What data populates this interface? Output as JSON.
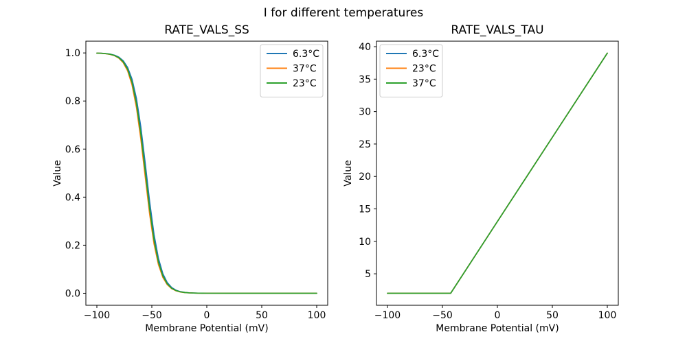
{
  "suptitle": "I for different temperatures",
  "colors": {
    "blue": "#1f77b4",
    "orange": "#ff7f0e",
    "green": "#2ca02c",
    "legend_edge": "#cccccc",
    "spine": "#000000"
  },
  "chart_data": [
    {
      "type": "line",
      "title": "RATE_VALS_SS",
      "xlabel": "Membrane Potential (mV)",
      "ylabel": "Value",
      "xlim": [
        -110,
        110
      ],
      "ylim": [
        -0.05,
        1.049
      ],
      "xticks": [
        -100,
        -50,
        0,
        50,
        100
      ],
      "xticklabels": [
        "−100",
        "−50",
        "0",
        "50",
        "100"
      ],
      "yticks": [
        0.0,
        0.2,
        0.4,
        0.6,
        0.8,
        1.0
      ],
      "yticklabels": [
        "0.0",
        "0.2",
        "0.4",
        "0.6",
        "0.8",
        "1.0"
      ],
      "grid": false,
      "legend_loc": "upper-right",
      "series": [
        {
          "name": "6.3°C",
          "color": "#1f77b4",
          "points": [
            [
              -100,
              0.9993
            ],
            [
              -96,
              0.9987
            ],
            [
              -92,
              0.9974
            ],
            [
              -88,
              0.9952
            ],
            [
              -84,
              0.9908
            ],
            [
              -80,
              0.9826
            ],
            [
              -76,
              0.9673
            ],
            [
              -72,
              0.9394
            ],
            [
              -68,
              0.8906
            ],
            [
              -64,
              0.8103
            ],
            [
              -60,
              0.6913
            ],
            [
              -56,
              0.5402
            ],
            [
              -52,
              0.3813
            ],
            [
              -48,
              0.2443
            ],
            [
              -44,
              0.1451
            ],
            [
              -40,
              0.0817
            ],
            [
              -36,
              0.0446
            ],
            [
              -32,
              0.0239
            ],
            [
              -28,
              0.0127
            ],
            [
              -24,
              0.0067
            ],
            [
              -20,
              0.0035
            ],
            [
              -16,
              0.0019
            ],
            [
              -12,
              0.001
            ],
            [
              -8,
              0.0005
            ],
            [
              -4,
              0.0003
            ],
            [
              0,
              0.0001
            ],
            [
              20,
              0
            ],
            [
              40,
              0
            ],
            [
              60,
              0
            ],
            [
              80,
              0
            ],
            [
              100,
              0
            ]
          ]
        },
        {
          "name": "37°C",
          "color": "#ff7f0e",
          "points": [
            [
              -100,
              0.9991
            ],
            [
              -96,
              0.9983
            ],
            [
              -92,
              0.9968
            ],
            [
              -88,
              0.9939
            ],
            [
              -84,
              0.9885
            ],
            [
              -80,
              0.9782
            ],
            [
              -76,
              0.9593
            ],
            [
              -72,
              0.9252
            ],
            [
              -68,
              0.8665
            ],
            [
              -64,
              0.7731
            ],
            [
              -60,
              0.6413
            ],
            [
              -56,
              0.4839
            ],
            [
              -52,
              0.3297
            ],
            [
              -48,
              0.2051
            ],
            [
              -44,
              0.1192
            ],
            [
              -40,
              0.0663
            ],
            [
              -36,
              0.0359
            ],
            [
              -32,
              0.0192
            ],
            [
              -28,
              0.0101
            ],
            [
              -24,
              0.0053
            ],
            [
              -20,
              0.0028
            ],
            [
              -16,
              0.0015
            ],
            [
              -12,
              0.0008
            ],
            [
              -8,
              0.0004
            ],
            [
              -4,
              0.0002
            ],
            [
              0,
              0.0001
            ],
            [
              20,
              0
            ],
            [
              40,
              0
            ],
            [
              60,
              0
            ],
            [
              80,
              0
            ],
            [
              100,
              0
            ]
          ]
        },
        {
          "name": "23°C",
          "color": "#2ca02c",
          "points": [
            [
              -100,
              0.9992
            ],
            [
              -96,
              0.9985
            ],
            [
              -92,
              0.9971
            ],
            [
              -88,
              0.9945
            ],
            [
              -84,
              0.9895
            ],
            [
              -80,
              0.9802
            ],
            [
              -76,
              0.9629
            ],
            [
              -72,
              0.9316
            ],
            [
              -68,
              0.8774
            ],
            [
              -64,
              0.7896
            ],
            [
              -60,
              0.6631
            ],
            [
              -56,
              0.5081
            ],
            [
              -52,
              0.3514
            ],
            [
              -48,
              0.2213
            ],
            [
              -44,
              0.1297
            ],
            [
              -40,
              0.0725
            ],
            [
              -36,
              0.0394
            ],
            [
              -32,
              0.0211
            ],
            [
              -28,
              0.0112
            ],
            [
              -24,
              0.0059
            ],
            [
              -20,
              0.0031
            ],
            [
              -16,
              0.0016
            ],
            [
              -12,
              0.0009
            ],
            [
              -8,
              0.0005
            ],
            [
              -4,
              0.0002
            ],
            [
              0,
              0.0001
            ],
            [
              20,
              0
            ],
            [
              40,
              0
            ],
            [
              60,
              0
            ],
            [
              80,
              0
            ],
            [
              100,
              0
            ]
          ]
        }
      ]
    },
    {
      "type": "line",
      "title": "RATE_VALS_TAU",
      "xlabel": "Membrane Potential (mV)",
      "ylabel": "Value",
      "xlim": [
        -110,
        110
      ],
      "ylim": [
        0.15,
        40.85
      ],
      "xticks": [
        -100,
        -50,
        0,
        50,
        100
      ],
      "xticklabels": [
        "−100",
        "−50",
        "0",
        "50",
        "100"
      ],
      "yticks": [
        5,
        10,
        15,
        20,
        25,
        30,
        35,
        40
      ],
      "yticklabels": [
        "5",
        "10",
        "15",
        "20",
        "25",
        "30",
        "35",
        "40"
      ],
      "grid": false,
      "legend_loc": "upper-left",
      "series": [
        {
          "name": "6.3°C",
          "color": "#1f77b4",
          "points": [
            [
              -100,
              2
            ],
            [
              -42.5,
              2
            ],
            [
              0,
              13.05
            ],
            [
              50,
              26.03
            ],
            [
              100,
              39
            ]
          ]
        },
        {
          "name": "23°C",
          "color": "#ff7f0e",
          "points": [
            [
              -100,
              2
            ],
            [
              -42.5,
              2
            ],
            [
              0,
              13.05
            ],
            [
              50,
              26.03
            ],
            [
              100,
              39
            ]
          ]
        },
        {
          "name": "37°C",
          "color": "#2ca02c",
          "points": [
            [
              -100,
              2
            ],
            [
              -42.5,
              2
            ],
            [
              0,
              13.05
            ],
            [
              50,
              26.03
            ],
            [
              100,
              39
            ]
          ]
        }
      ]
    }
  ]
}
